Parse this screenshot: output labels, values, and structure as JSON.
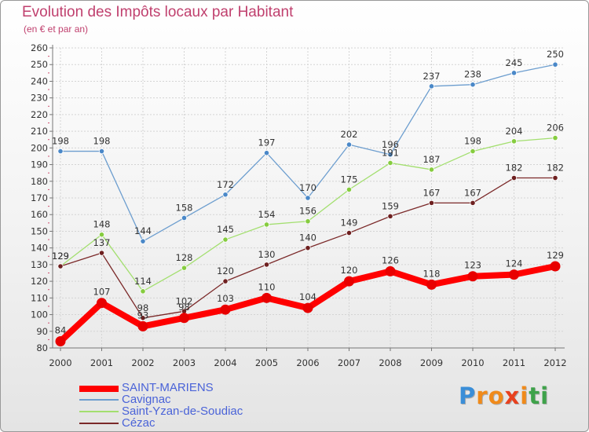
{
  "chart_data": {
    "type": "line",
    "title": "Evolution des Impôts locaux par Habitant",
    "subtitle": "(en € et par an)",
    "xlabel": "",
    "ylabel": "",
    "ylim": [
      80,
      260
    ],
    "ytick_step": 10,
    "grid": true,
    "legend_position": "bottom-left",
    "x": [
      "2000",
      "2001",
      "2002",
      "2003",
      "2004",
      "2005",
      "2006",
      "2007",
      "2008",
      "2009",
      "2010",
      "2011",
      "2012"
    ],
    "series": [
      {
        "name": "SAINT-MARIENS",
        "color": "#ff0000",
        "marker_color": "#e80000",
        "thick": true,
        "values": [
          84,
          107,
          93,
          98,
          103,
          110,
          104,
          120,
          126,
          118,
          123,
          124,
          129
        ]
      },
      {
        "name": "Cavignac",
        "color": "#6d9ecf",
        "marker_color": "#4a88c8",
        "thick": false,
        "values": [
          198,
          198,
          144,
          158,
          172,
          197,
          170,
          202,
          196,
          237,
          238,
          245,
          250
        ]
      },
      {
        "name": "Saint-Yzan-de-Soudiac",
        "color": "#a3df6f",
        "marker_color": "#86cc3f",
        "thick": false,
        "values": [
          129,
          148,
          114,
          128,
          145,
          154,
          156,
          175,
          191,
          187,
          198,
          204,
          206
        ]
      },
      {
        "name": "Cézac",
        "color": "#7b2929",
        "marker_color": "#6e2020",
        "thick": false,
        "values": [
          129,
          137,
          98,
          102,
          120,
          130,
          140,
          149,
          159,
          167,
          167,
          182,
          182
        ]
      }
    ]
  },
  "logo": {
    "text": "Proxiti",
    "letter_colors": [
      "#3a8ed8",
      "#f08a1a",
      "#f08a1a",
      "#e8411e",
      "#f08a1a",
      "#3ea24a",
      "#3ea24a"
    ]
  }
}
